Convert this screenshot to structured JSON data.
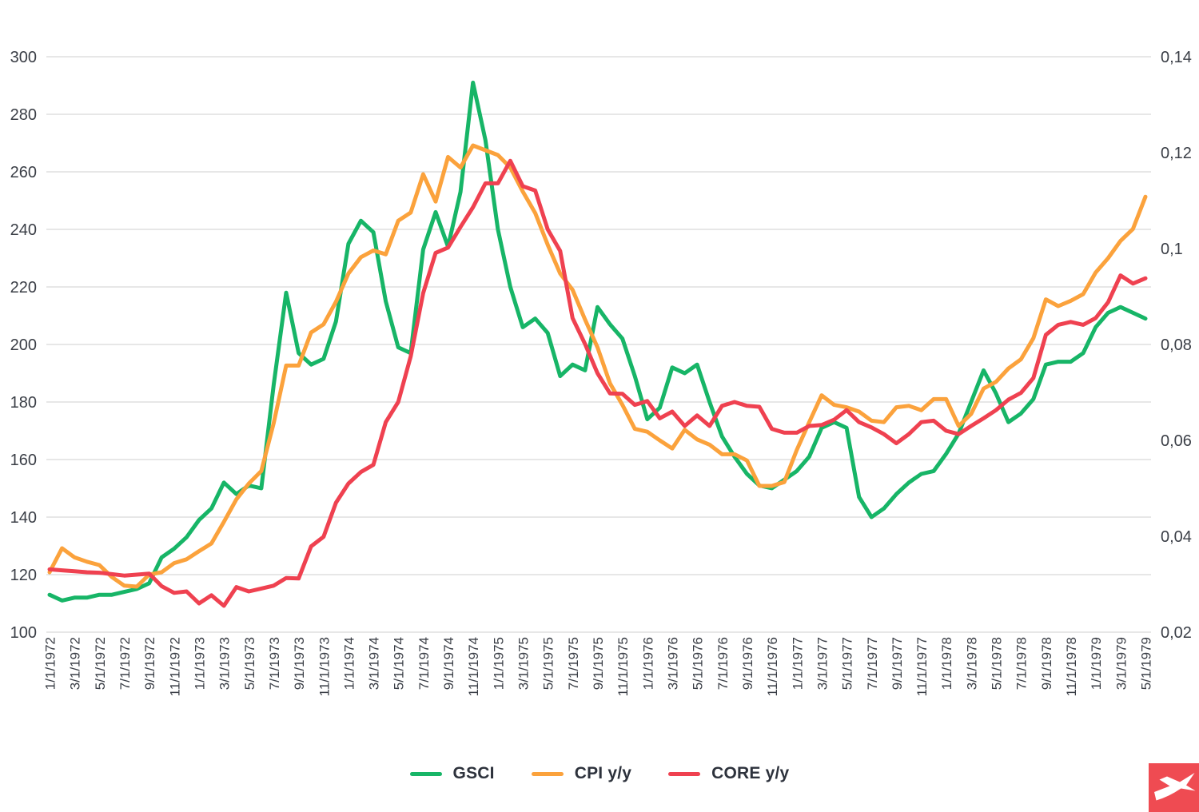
{
  "chart_data": {
    "type": "line",
    "title": "",
    "grid": "horizontal",
    "legend_position": "bottom-center",
    "background_color": "#ffffff",
    "gridline_color": "#cfcfcf",
    "axis_text_color": "#3a3e46",
    "left_axis": {
      "min": 100,
      "max": 300,
      "step": 20,
      "ticks": [
        300,
        280,
        260,
        240,
        220,
        200,
        180,
        160,
        140,
        120,
        100
      ],
      "tick_labels": [
        "300",
        "280",
        "260",
        "240",
        "220",
        "200",
        "180",
        "160",
        "140",
        "120",
        "100"
      ]
    },
    "right_axis": {
      "min": 0.02,
      "max": 0.14,
      "step": 0.02,
      "ticks": [
        0.14,
        0.12,
        0.1,
        0.08,
        0.06,
        0.04,
        0.02
      ],
      "tick_labels": [
        "0,14",
        "0,12",
        "0,1",
        "0,08",
        "0,06",
        "0,04",
        "0,02"
      ]
    },
    "categories": [
      "1/1/1972",
      "2/1/1972",
      "3/1/1972",
      "4/1/1972",
      "5/1/1972",
      "6/1/1972",
      "7/1/1972",
      "8/1/1972",
      "9/1/1972",
      "10/1/1972",
      "11/1/1972",
      "12/1/1972",
      "1/1/1973",
      "2/1/1973",
      "3/1/1973",
      "4/1/1973",
      "5/1/1973",
      "6/1/1973",
      "7/1/1973",
      "8/1/1973",
      "9/1/1973",
      "10/1/1973",
      "11/1/1973",
      "12/1/1973",
      "1/1/1974",
      "2/1/1974",
      "3/1/1974",
      "4/1/1974",
      "5/1/1974",
      "6/1/1974",
      "7/1/1974",
      "8/1/1974",
      "9/1/1974",
      "10/1/1974",
      "11/1/1974",
      "12/1/1974",
      "1/1/1975",
      "2/1/1975",
      "3/1/1975",
      "4/1/1975",
      "5/1/1975",
      "6/1/1975",
      "7/1/1975",
      "8/1/1975",
      "9/1/1975",
      "10/1/1975",
      "11/1/1975",
      "12/1/1975",
      "1/1/1976",
      "2/1/1976",
      "3/1/1976",
      "4/1/1976",
      "5/1/1976",
      "6/1/1976",
      "7/1/1976",
      "8/1/1976",
      "9/1/1976",
      "10/1/1976",
      "11/1/1976",
      "12/1/1976",
      "1/1/1977",
      "2/1/1977",
      "3/1/1977",
      "4/1/1977",
      "5/1/1977",
      "6/1/1977",
      "7/1/1977",
      "8/1/1977",
      "9/1/1977",
      "10/1/1977",
      "11/1/1977",
      "12/1/1977",
      "1/1/1978",
      "2/1/1978",
      "3/1/1978",
      "4/1/1978",
      "5/1/1978",
      "6/1/1978",
      "7/1/1978",
      "8/1/1978",
      "9/1/1978",
      "10/1/1978",
      "11/1/1978",
      "12/1/1978",
      "1/1/1979",
      "2/1/1979",
      "3/1/1979",
      "4/1/1979",
      "5/1/1979"
    ],
    "x_label_every": 2,
    "series": [
      {
        "name": "GSCI",
        "axis": "left",
        "color": "#17b567",
        "values": [
          113,
          111,
          112,
          112,
          113,
          113,
          114,
          115,
          117,
          126,
          129,
          133,
          139,
          143,
          152,
          148,
          151,
          150,
          186,
          218,
          197,
          193,
          195,
          208,
          235,
          243,
          239,
          215,
          199,
          197,
          233,
          246,
          234,
          253,
          291,
          271,
          240,
          220,
          206,
          209,
          204,
          189,
          193,
          191,
          213,
          207,
          202,
          189,
          174,
          178,
          192,
          190,
          193,
          180,
          168,
          161,
          155,
          151,
          150,
          153,
          156,
          161,
          171,
          173,
          171,
          147,
          140,
          143,
          148,
          152,
          155,
          156,
          162,
          169,
          180,
          191,
          183,
          173,
          176,
          181,
          193,
          194,
          194,
          197,
          206,
          211,
          213,
          211,
          209
        ]
      },
      {
        "name": "CPI y/y",
        "axis": "right",
        "color": "#fba23c",
        "values": [
          0.0325,
          0.0375,
          0.0356,
          0.0347,
          0.034,
          0.0315,
          0.0297,
          0.0295,
          0.032,
          0.0325,
          0.0344,
          0.0352,
          0.0369,
          0.0385,
          0.043,
          0.0477,
          0.051,
          0.0536,
          0.0636,
          0.0756,
          0.0756,
          0.0825,
          0.0842,
          0.0889,
          0.0948,
          0.0982,
          0.0996,
          0.0988,
          0.1058,
          0.1075,
          0.1155,
          0.1098,
          0.1191,
          0.1169,
          0.1215,
          0.1205,
          0.1195,
          0.1169,
          0.1119,
          0.1074,
          0.1008,
          0.0948,
          0.0914,
          0.0852,
          0.0794,
          0.0719,
          0.0674,
          0.0624,
          0.0618,
          0.06,
          0.0583,
          0.0622,
          0.0602,
          0.0591,
          0.0571,
          0.0571,
          0.0558,
          0.0505,
          0.0505,
          0.0513,
          0.058,
          0.0638,
          0.0694,
          0.0674,
          0.0669,
          0.066,
          0.0641,
          0.0638,
          0.0669,
          0.0672,
          0.0663,
          0.0686,
          0.0686,
          0.063,
          0.0655,
          0.0708,
          0.0722,
          0.075,
          0.0769,
          0.0813,
          0.0894,
          0.088,
          0.0891,
          0.0905,
          0.095,
          0.098,
          0.1016,
          0.1041,
          0.1108
        ]
      },
      {
        "name": "CORE y/y",
        "axis": "right",
        "color": "#ef4150",
        "values": [
          0.0331,
          0.0329,
          0.0327,
          0.0325,
          0.0324,
          0.0321,
          0.0318,
          0.032,
          0.0322,
          0.0296,
          0.0282,
          0.0285,
          0.026,
          0.0277,
          0.0255,
          0.0294,
          0.0285,
          0.0291,
          0.0297,
          0.0313,
          0.0312,
          0.0379,
          0.0399,
          0.047,
          0.051,
          0.0534,
          0.0549,
          0.0638,
          0.068,
          0.0775,
          0.0907,
          0.0991,
          0.1002,
          0.1045,
          0.1086,
          0.1136,
          0.1136,
          0.1183,
          0.113,
          0.1121,
          0.104,
          0.0995,
          0.0855,
          0.0801,
          0.074,
          0.0698,
          0.0697,
          0.0674,
          0.0682,
          0.0646,
          0.066,
          0.063,
          0.0652,
          0.063,
          0.0672,
          0.068,
          0.0672,
          0.067,
          0.0624,
          0.0616,
          0.0616,
          0.063,
          0.0632,
          0.0643,
          0.0663,
          0.0638,
          0.0627,
          0.0613,
          0.0594,
          0.0613,
          0.0638,
          0.0641,
          0.062,
          0.0613,
          0.063,
          0.0646,
          0.0663,
          0.0685,
          0.0699,
          0.073,
          0.082,
          0.0841,
          0.0847,
          0.0841,
          0.0855,
          0.0888,
          0.0944,
          0.0927,
          0.0938
        ]
      }
    ],
    "legend": [
      {
        "label": "GSCI",
        "color": "#17b567"
      },
      {
        "label": "CPI y/y",
        "color": "#fba23c"
      },
      {
        "label": "CORE y/y",
        "color": "#ef4150"
      }
    ],
    "logo": {
      "background": "#ef4b52",
      "glyph": "white bird-x"
    }
  }
}
